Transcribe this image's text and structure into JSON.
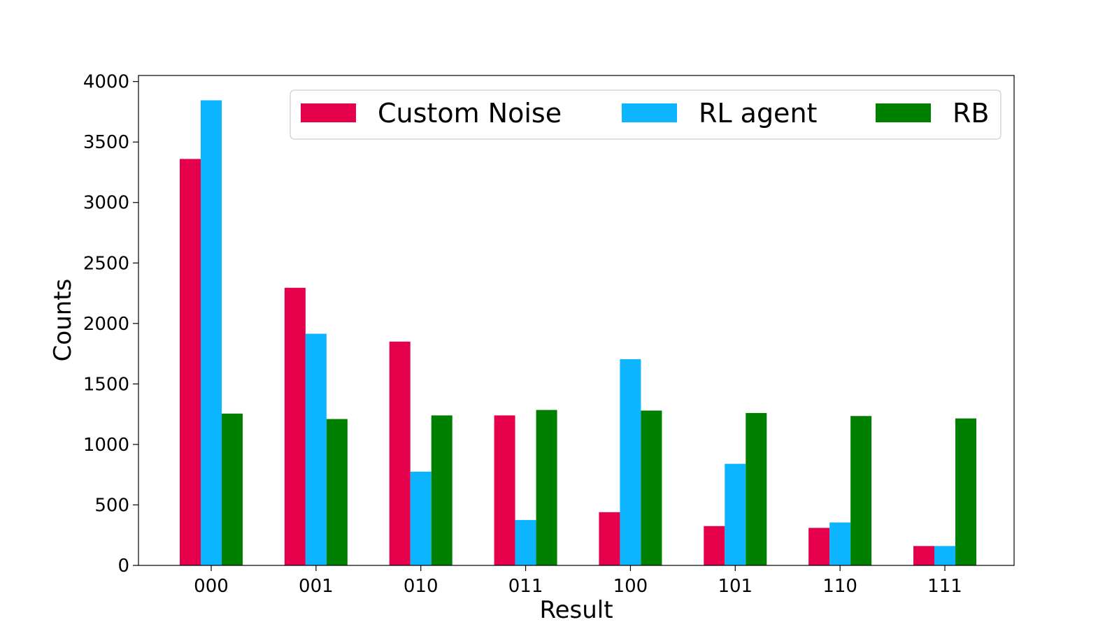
{
  "chart_data": {
    "type": "bar",
    "title": "",
    "xlabel": "Result",
    "ylabel": "Counts",
    "categories": [
      "000",
      "001",
      "010",
      "011",
      "100",
      "101",
      "110",
      "111"
    ],
    "series": [
      {
        "name": "Custom Noise",
        "color": "#e5004b",
        "values": [
          3360,
          2295,
          1850,
          1240,
          440,
          325,
          310,
          160
        ]
      },
      {
        "name": "RL agent",
        "color": "#0db4ff",
        "values": [
          3845,
          1915,
          775,
          375,
          1705,
          840,
          355,
          160
        ]
      },
      {
        "name": "RB",
        "color": "#008000",
        "values": [
          1255,
          1210,
          1240,
          1285,
          1280,
          1260,
          1235,
          1215
        ]
      }
    ],
    "ylim": [
      0,
      4050
    ],
    "yticks": [
      0,
      500,
      1000,
      1500,
      2000,
      2500,
      3000,
      3500,
      4000
    ],
    "grid": false,
    "legend": {
      "placement": "top-right",
      "columns": 3
    }
  }
}
